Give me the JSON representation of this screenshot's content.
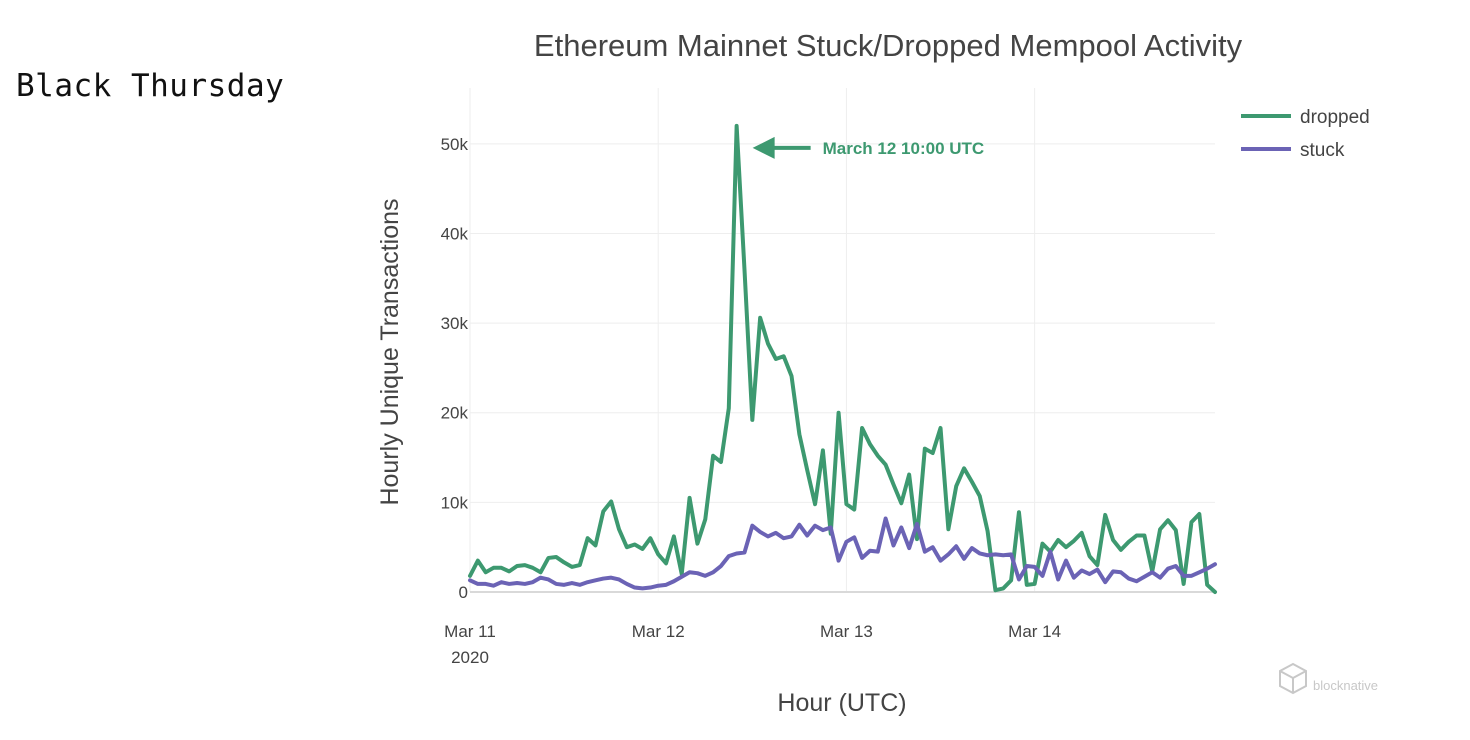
{
  "slide_label": "Black Thursday",
  "watermark": "blocknative",
  "colors": {
    "dropped": "#3d9970",
    "stuck": "#6b63b5",
    "grid": "#eeeeee",
    "text": "#444444"
  },
  "chart_data": {
    "type": "line",
    "title": "Ethereum Mainnet Stuck/Dropped Mempool Activity",
    "xlabel": "Hour (UTC)",
    "ylabel": "Hourly Unique Transactions",
    "x_start": "2020-03-11 00:00",
    "x_step_hours": 1,
    "xlim_hours": [
      0,
      95
    ],
    "ylim": [
      0,
      54000
    ],
    "x_ticks": [
      {
        "hour": 0,
        "label": "Mar 11",
        "sublabel": "2020"
      },
      {
        "hour": 24,
        "label": "Mar 12"
      },
      {
        "hour": 48,
        "label": "Mar 13"
      },
      {
        "hour": 72,
        "label": "Mar 14"
      }
    ],
    "y_ticks": [
      {
        "value": 0,
        "label": "0"
      },
      {
        "value": 10000,
        "label": "10k"
      },
      {
        "value": 20000,
        "label": "20k"
      },
      {
        "value": 30000,
        "label": "30k"
      },
      {
        "value": 40000,
        "label": "40k"
      },
      {
        "value": 50000,
        "label": "50k"
      }
    ],
    "grid": true,
    "legend_position": "top-right",
    "series": [
      {
        "name": "dropped",
        "values": [
          1800,
          3500,
          2200,
          2700,
          2700,
          2300,
          2900,
          3000,
          2700,
          2200,
          3800,
          3900,
          3300,
          2800,
          3000,
          6000,
          5200,
          9000,
          10100,
          7000,
          5000,
          5300,
          4800,
          6000,
          4200,
          3200,
          6200,
          2000,
          10500,
          5400,
          8100,
          15200,
          14500,
          20500,
          52000,
          36000,
          19200,
          30600,
          27700,
          26000,
          26300,
          24100,
          17600,
          13600,
          9800,
          15800,
          6500,
          20000,
          9800,
          9200,
          18300,
          16500,
          15200,
          14200,
          12000,
          9900,
          13100,
          5900,
          16000,
          15500,
          18300,
          7000,
          11800,
          13800,
          12300,
          10700,
          6800,
          200,
          400,
          1300,
          8900,
          800,
          900,
          5400,
          4500,
          5800,
          5000,
          5700,
          6600,
          4000,
          3000,
          8600,
          5800,
          4700,
          5600,
          6300,
          6300,
          2300,
          7000,
          8000,
          6900,
          900,
          7800,
          8700,
          800,
          0
        ]
      },
      {
        "name": "stuck",
        "values": [
          1300,
          900,
          900,
          700,
          1100,
          900,
          1000,
          900,
          1100,
          1600,
          1400,
          900,
          800,
          1000,
          800,
          1100,
          1300,
          1500,
          1600,
          1400,
          900,
          500,
          400,
          500,
          700,
          800,
          1200,
          1700,
          2200,
          2100,
          1800,
          2200,
          2900,
          4000,
          4300,
          4400,
          7400,
          6700,
          6200,
          6600,
          6000,
          6200,
          7500,
          6300,
          7400,
          6900,
          7200,
          3500,
          5600,
          6100,
          3800,
          4600,
          4500,
          8200,
          5200,
          7200,
          4900,
          7600,
          4500,
          5000,
          3500,
          4200,
          5100,
          3700,
          4900,
          4300,
          4100,
          4200,
          4100,
          4200,
          1400,
          2900,
          2800,
          1800,
          4500,
          1400,
          3500,
          1600,
          2400,
          2000,
          2500,
          1100,
          2300,
          2200,
          1500,
          1200,
          1700,
          2200,
          1600,
          2600,
          2900,
          1800,
          1800,
          2200,
          2600,
          3100
        ]
      }
    ],
    "annotations": [
      {
        "hour": 34,
        "value": 52000,
        "text": "March 12 10:00 UTC",
        "series": "dropped"
      }
    ]
  }
}
